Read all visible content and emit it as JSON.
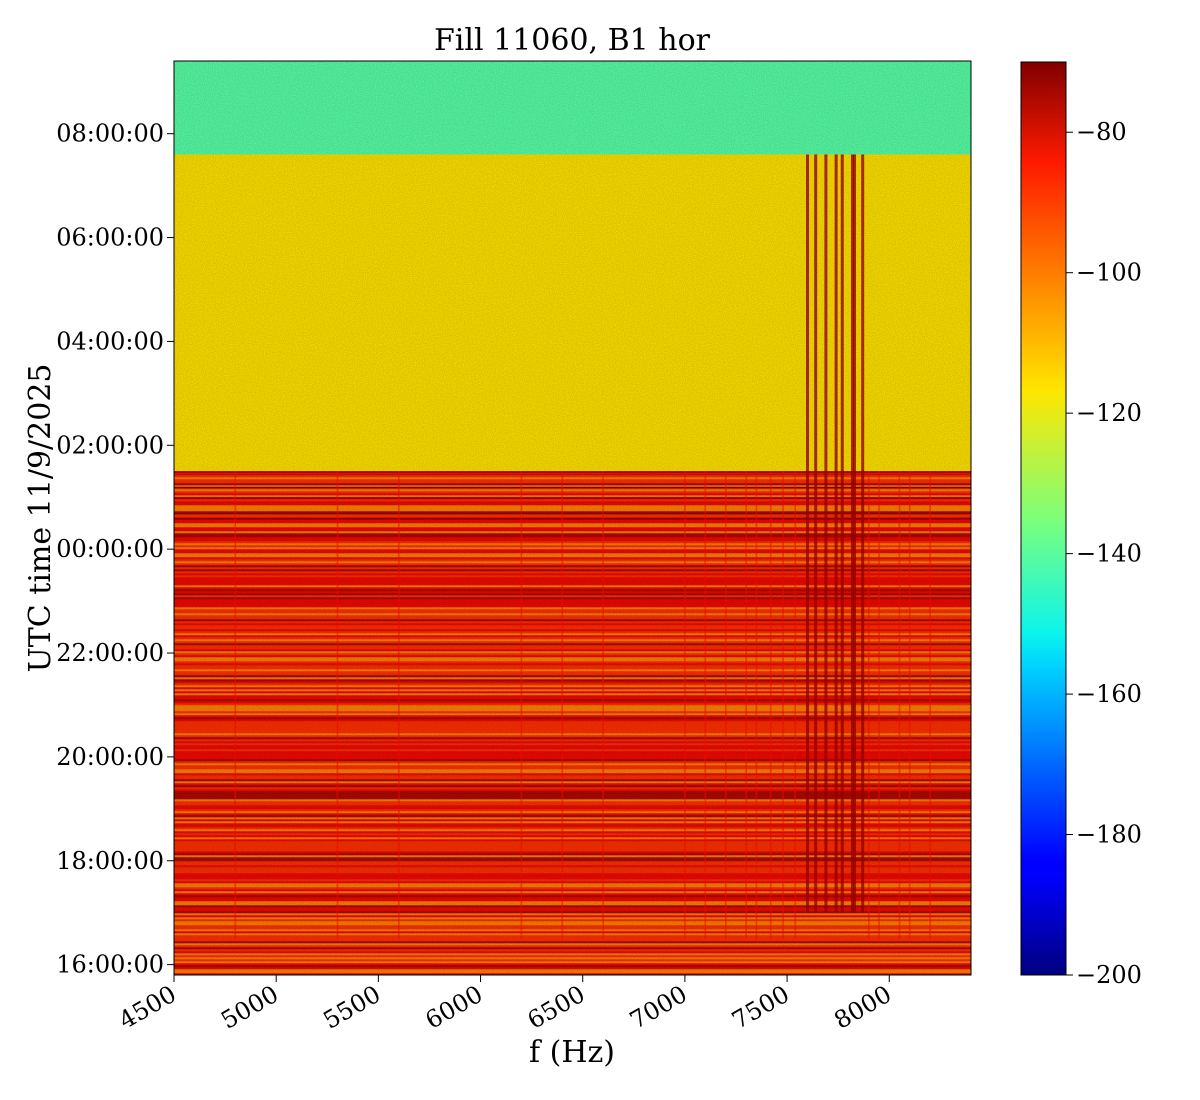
{
  "chart_data": {
    "type": "heatmap",
    "title": "Fill 11060, B1 hor",
    "xlabel": "f (Hz)",
    "ylabel": "UTC time 11/9/2025",
    "xlim": [
      4500,
      8400
    ],
    "ylim_hours": [
      15.8,
      33.4
    ],
    "x_ticks": [
      {
        "value": 4500,
        "label": "4500"
      },
      {
        "value": 5000,
        "label": "5000"
      },
      {
        "value": 5500,
        "label": "5500"
      },
      {
        "value": 6000,
        "label": "6000"
      },
      {
        "value": 6500,
        "label": "6500"
      },
      {
        "value": 7000,
        "label": "7000"
      },
      {
        "value": 7500,
        "label": "7500"
      },
      {
        "value": 8000,
        "label": "8000"
      }
    ],
    "y_ticks": [
      {
        "value": 16,
        "label": "16:00:00"
      },
      {
        "value": 18,
        "label": "18:00:00"
      },
      {
        "value": 20,
        "label": "20:00:00"
      },
      {
        "value": 22,
        "label": "22:00:00"
      },
      {
        "value": 24,
        "label": "00:00:00"
      },
      {
        "value": 26,
        "label": "02:00:00"
      },
      {
        "value": 28,
        "label": "04:00:00"
      },
      {
        "value": 30,
        "label": "06:00:00"
      },
      {
        "value": 32,
        "label": "08:00:00"
      }
    ],
    "colorbar": {
      "colormap": "jet",
      "range": [
        -200,
        -70
      ],
      "ticks": [
        {
          "value": -80,
          "label": "−80"
        },
        {
          "value": -100,
          "label": "−100"
        },
        {
          "value": -120,
          "label": "−120"
        },
        {
          "value": -140,
          "label": "−140"
        },
        {
          "value": -160,
          "label": "−160"
        },
        {
          "value": -180,
          "label": "−180"
        },
        {
          "value": -200,
          "label": "−200"
        }
      ]
    },
    "regions": [
      {
        "time_start_hours": 31.6,
        "time_end_hours": 33.4,
        "level_db": -140,
        "description": "low-level noise floor"
      },
      {
        "time_start_hours": 25.5,
        "time_end_hours": 31.6,
        "level_db": -115,
        "description": "quiet period"
      },
      {
        "time_start_hours": 15.8,
        "time_end_hours": 25.5,
        "level_db": -95,
        "description": "high activity with horizontal banding"
      }
    ],
    "spectral_lines_hz": [
      7600,
      7640,
      7690,
      7740,
      7770,
      7820,
      7830,
      7870
    ],
    "spectral_lines_time_range_hours": [
      17.0,
      31.6
    ],
    "peak_level_db": -75
  }
}
